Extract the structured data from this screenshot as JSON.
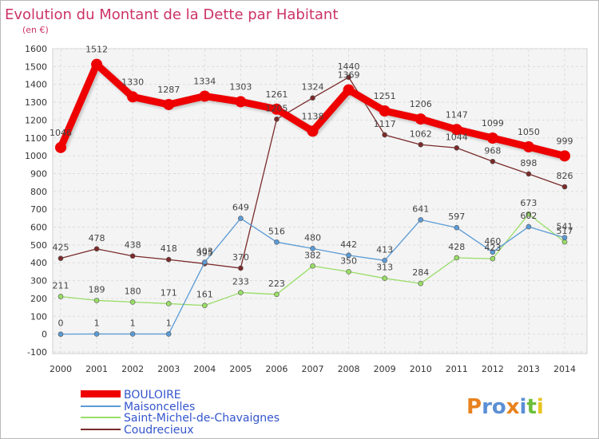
{
  "chart_data": {
    "type": "line",
    "title": "Evolution du Montant de la Dette par Habitant",
    "subtitle": "(en €)",
    "xlabel": "",
    "ylabel": "",
    "x": [
      "2000",
      "2001",
      "2002",
      "2003",
      "2004",
      "2005",
      "2006",
      "2007",
      "2008",
      "2009",
      "2010",
      "2011",
      "2012",
      "2013",
      "2014"
    ],
    "ylim": [
      -100,
      1600
    ],
    "yticks": [
      "-100",
      "0",
      "100",
      "200",
      "300",
      "400",
      "500",
      "600",
      "700",
      "800",
      "900",
      "1000",
      "1100",
      "1200",
      "1300",
      "1400",
      "1500",
      "1600"
    ],
    "grid": true,
    "legend_position": "bottom-left",
    "series": [
      {
        "name": "BOULOIRE",
        "color": "#ee0000",
        "values": [
          1046,
          1512,
          1330,
          1287,
          1334,
          1303,
          1261,
          1138,
          1369,
          1251,
          1206,
          1147,
          1099,
          1050,
          999
        ],
        "labels": [
          "1046",
          "1512",
          "1330",
          "1287",
          "1334",
          "1303",
          "1261",
          "1138",
          "1369",
          "1251",
          "1206",
          "1147",
          "1099",
          "1050",
          "999"
        ]
      },
      {
        "name": "Maisoncelles",
        "color": "#5b9bd5",
        "values": [
          0,
          1,
          1,
          1,
          403,
          649,
          516,
          480,
          442,
          413,
          641,
          597,
          460,
          602,
          541
        ],
        "labels": [
          "0",
          "1",
          "1",
          "1",
          "403",
          "649",
          "516",
          "480",
          "442",
          "413",
          "641",
          "597",
          "460",
          "602",
          "541"
        ]
      },
      {
        "name": "Saint-Michel-de-Chavaignes",
        "color": "#99dd66",
        "values": [
          211,
          189,
          180,
          171,
          161,
          233,
          223,
          382,
          350,
          313,
          284,
          428,
          423,
          673,
          517
        ],
        "labels": [
          "211",
          "189",
          "180",
          "171",
          "161",
          "233",
          "223",
          "382",
          "350",
          "313",
          "284",
          "428",
          "423",
          "673",
          "517"
        ]
      },
      {
        "name": "Coudrecieux",
        "color": "#7a2a2a",
        "values": [
          425,
          478,
          438,
          418,
          395,
          370,
          1205,
          1324,
          1440,
          1117,
          1062,
          1044,
          968,
          898,
          826
        ],
        "labels": [
          "425",
          "478",
          "438",
          "418",
          "395",
          "370",
          "1205",
          "1324",
          "1440",
          "1117",
          "1062",
          "1044",
          "968",
          "898",
          "826"
        ]
      }
    ]
  },
  "brand": {
    "text": "Proxiti"
  }
}
